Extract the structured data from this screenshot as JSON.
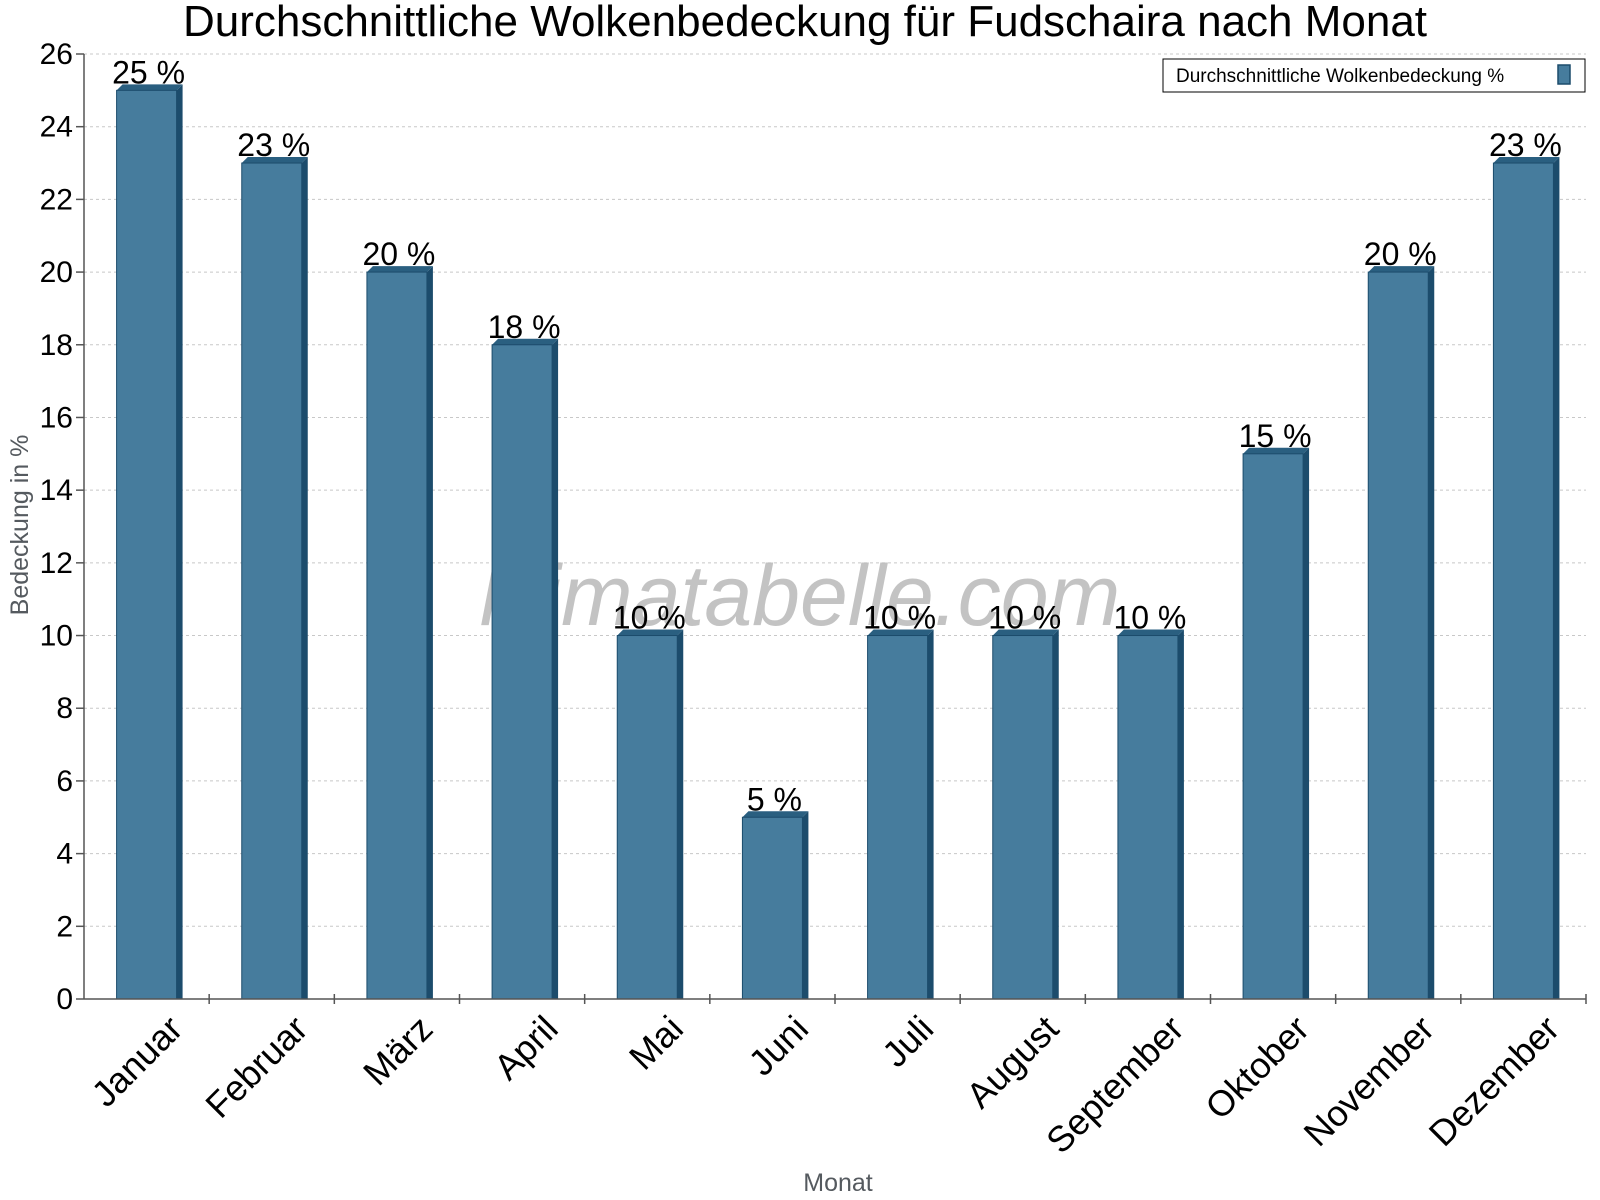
{
  "chart_data": {
    "type": "bar",
    "title": "Durchschnittliche Wolkenbedeckung für Fudschaira nach Monat",
    "xlabel": "Monat",
    "ylabel": "Bedeckung in %",
    "categories": [
      "Januar",
      "Februar",
      "März",
      "April",
      "Mai",
      "Juni",
      "Juli",
      "August",
      "September",
      "Oktober",
      "November",
      "Dezember"
    ],
    "series": [
      {
        "name": "Durchschnittliche Wolkenbedeckung %",
        "values": [
          25,
          23,
          20,
          18,
          10,
          5,
          10,
          10,
          10,
          15,
          20,
          23
        ],
        "labels": [
          "25 %",
          "23 %",
          "20 %",
          "18 %",
          "10 %",
          "5 %",
          "10 %",
          "10 %",
          "10 %",
          "15 %",
          "20 %",
          "23 %"
        ]
      }
    ],
    "ylim": [
      0,
      26
    ],
    "yticks": [
      0,
      2,
      4,
      6,
      8,
      10,
      12,
      14,
      16,
      18,
      20,
      22,
      24,
      26
    ],
    "grid": true,
    "legend_position": "top-right",
    "colors": {
      "bar_front": "#467c9d",
      "bar_side": "#1c4c6c",
      "bar_top": "#2a5f80"
    }
  },
  "watermark": "klimatabelle.com"
}
